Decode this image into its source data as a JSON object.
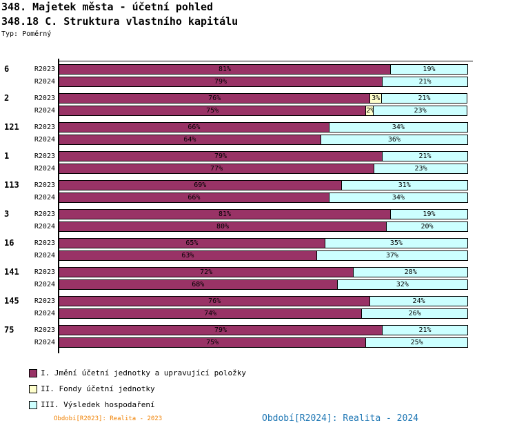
{
  "header": {
    "title1": "348. Majetek města - účetní pohled",
    "title2": "348.18 C. Struktura vlastního kapitálu",
    "type_label": "Typ: Poměrný"
  },
  "colors": {
    "series1": "#993366",
    "series2": "#FFFFCC",
    "series3": "#CCFFFF",
    "border": "#000000",
    "footer_left": "#F08000",
    "footer_right": "#1F77B4"
  },
  "chart_data": {
    "type": "bar",
    "orientation": "horizontal",
    "stacked": true,
    "unit": "%",
    "xlim": [
      0,
      100
    ],
    "grid": false,
    "legend_position": "bottom-left",
    "series_names": [
      "I. Jmění účetní jednotky a upravující položky",
      "II. Fondy účetní jednotky",
      "III. Výsledek hospodaření"
    ],
    "row_labels": [
      "R2023",
      "R2024"
    ],
    "groups": [
      {
        "label": "6",
        "rows": [
          {
            "label": "R2023",
            "values": [
              81,
              0,
              19
            ]
          },
          {
            "label": "R2024",
            "values": [
              79,
              0,
              21
            ]
          }
        ]
      },
      {
        "label": "2",
        "rows": [
          {
            "label": "R2023",
            "values": [
              76,
              3,
              21
            ]
          },
          {
            "label": "R2024",
            "values": [
              75,
              2,
              23
            ]
          }
        ]
      },
      {
        "label": "121",
        "rows": [
          {
            "label": "R2023",
            "values": [
              66,
              0,
              34
            ]
          },
          {
            "label": "R2024",
            "values": [
              64,
              0,
              36
            ]
          }
        ]
      },
      {
        "label": "1",
        "rows": [
          {
            "label": "R2023",
            "values": [
              79,
              0,
              21
            ]
          },
          {
            "label": "R2024",
            "values": [
              77,
              0,
              23
            ]
          }
        ]
      },
      {
        "label": "113",
        "rows": [
          {
            "label": "R2023",
            "values": [
              69,
              0,
              31
            ]
          },
          {
            "label": "R2024",
            "values": [
              66,
              0,
              34
            ]
          }
        ]
      },
      {
        "label": "3",
        "rows": [
          {
            "label": "R2023",
            "values": [
              81,
              0,
              19
            ]
          },
          {
            "label": "R2024",
            "values": [
              80,
              0,
              20
            ]
          }
        ]
      },
      {
        "label": "16",
        "rows": [
          {
            "label": "R2023",
            "values": [
              65,
              0,
              35
            ]
          },
          {
            "label": "R2024",
            "values": [
              63,
              0,
              37
            ]
          }
        ]
      },
      {
        "label": "141",
        "rows": [
          {
            "label": "R2023",
            "values": [
              72,
              0,
              28
            ]
          },
          {
            "label": "R2024",
            "values": [
              68,
              0,
              32
            ]
          }
        ]
      },
      {
        "label": "145",
        "rows": [
          {
            "label": "R2023",
            "values": [
              76,
              0,
              24
            ]
          },
          {
            "label": "R2024",
            "values": [
              74,
              0,
              26
            ]
          }
        ]
      },
      {
        "label": "75",
        "rows": [
          {
            "label": "R2023",
            "values": [
              79,
              0,
              21
            ]
          },
          {
            "label": "R2024",
            "values": [
              75,
              0,
              25
            ]
          }
        ]
      }
    ]
  },
  "legend": {
    "items": [
      {
        "label": "I. Jmění účetní jednotky a upravující položky",
        "color": "#993366"
      },
      {
        "label": "II. Fondy účetní jednotky",
        "color": "#FFFFCC"
      },
      {
        "label": "III. Výsledek hospodaření",
        "color": "#CCFFFF"
      }
    ]
  },
  "footer": {
    "left": "Období[R2023]: Realita - 2023",
    "right": "Období[R2024]: Realita - 2024"
  }
}
